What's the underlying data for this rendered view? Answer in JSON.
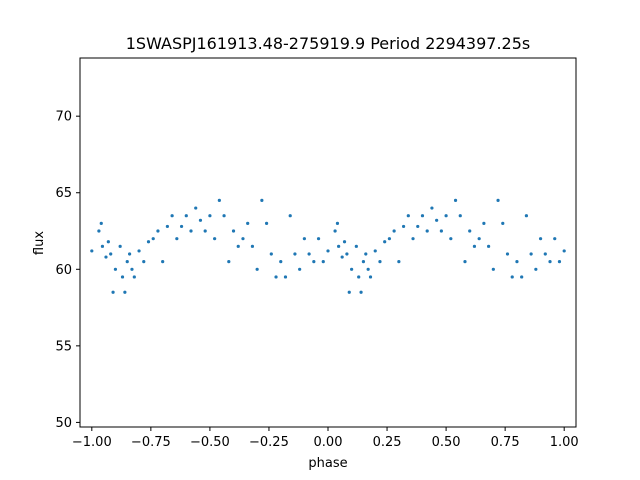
{
  "chart_data": {
    "type": "scatter",
    "title": "1SWASPJ161913.48-275919.9 Period 2294397.25s",
    "xlabel": "phase",
    "ylabel": "flux",
    "xlim": [
      -1.05,
      1.05
    ],
    "ylim": [
      49.7,
      73.8
    ],
    "xticks": [
      -1.0,
      -0.75,
      -0.5,
      -0.25,
      0.0,
      0.25,
      0.5,
      0.75,
      1.0
    ],
    "xtick_labels": [
      "−1.00",
      "−0.75",
      "−0.50",
      "−0.25",
      "0.00",
      "0.25",
      "0.50",
      "0.75",
      "1.00"
    ],
    "yticks": [
      50,
      55,
      60,
      65,
      70
    ],
    "ytick_labels": [
      "50",
      "55",
      "60",
      "65",
      "70"
    ],
    "grid": false,
    "point_color": "#1f77b4",
    "series": [
      {
        "x": [
          -1.0,
          -0.97,
          -0.96,
          -0.955,
          -0.94,
          -0.93,
          -0.92,
          -0.91,
          -0.9,
          -0.88,
          -0.87,
          -0.86,
          -0.85,
          -0.84,
          -0.83,
          -0.82,
          -0.8,
          -0.78,
          -0.76,
          -0.74,
          -0.72,
          -0.7,
          -0.68,
          -0.66,
          -0.64,
          -0.62,
          -0.6,
          -0.58,
          -0.56,
          -0.54,
          -0.52,
          -0.5,
          -0.48,
          -0.46,
          -0.44,
          -0.42,
          -0.4,
          -0.38,
          -0.36,
          -0.34,
          -0.32,
          -0.3,
          -0.28,
          -0.26,
          -0.24,
          -0.22,
          -0.2,
          -0.18,
          -0.16,
          -0.14,
          -0.12,
          -0.1,
          -0.08,
          -0.06,
          -0.04,
          -0.02,
          0.0,
          0.03,
          0.04,
          0.045,
          0.06,
          0.07,
          0.08,
          0.09,
          0.1,
          0.12,
          0.13,
          0.14,
          0.15,
          0.16,
          0.17,
          0.18,
          0.2,
          0.22,
          0.24,
          0.26,
          0.28,
          0.3,
          0.32,
          0.34,
          0.36,
          0.38,
          0.4,
          0.42,
          0.44,
          0.46,
          0.48,
          0.5,
          0.52,
          0.54,
          0.56,
          0.58,
          0.6,
          0.62,
          0.64,
          0.66,
          0.68,
          0.7,
          0.72,
          0.74,
          0.76,
          0.78,
          0.8,
          0.82,
          0.84,
          0.86,
          0.88,
          0.9,
          0.92,
          0.94,
          0.96,
          0.98,
          1.0
        ],
        "y": [
          61.2,
          62.5,
          63.0,
          61.5,
          60.8,
          61.8,
          61.0,
          58.5,
          60.0,
          61.5,
          59.5,
          58.5,
          60.5,
          61.0,
          60.0,
          59.5,
          61.2,
          60.5,
          61.8,
          62.0,
          62.5,
          60.5,
          62.8,
          63.5,
          62.0,
          62.8,
          63.5,
          62.5,
          64.0,
          63.2,
          62.5,
          63.5,
          62.0,
          64.5,
          63.5,
          60.5,
          62.5,
          61.5,
          62.0,
          63.0,
          61.5,
          60.0,
          64.5,
          63.0,
          61.0,
          59.5,
          60.5,
          59.5,
          63.5,
          61.0,
          60.0,
          62.0,
          61.0,
          60.5,
          62.0,
          60.5,
          61.2,
          62.5,
          63.0,
          61.5,
          60.8,
          61.8,
          61.0,
          58.5,
          60.0,
          61.5,
          59.5,
          58.5,
          60.5,
          61.0,
          60.0,
          59.5,
          61.2,
          60.5,
          61.8,
          62.0,
          62.5,
          60.5,
          62.8,
          63.5,
          62.0,
          62.8,
          63.5,
          62.5,
          64.0,
          63.2,
          62.5,
          63.5,
          62.0,
          64.5,
          63.5,
          60.5,
          62.5,
          61.5,
          62.0,
          63.0,
          61.5,
          60.0,
          64.5,
          63.0,
          61.0,
          59.5,
          60.5,
          59.5,
          63.5,
          61.0,
          60.0,
          62.0,
          61.0,
          60.5,
          62.0,
          60.5,
          61.2
        ]
      }
    ]
  }
}
